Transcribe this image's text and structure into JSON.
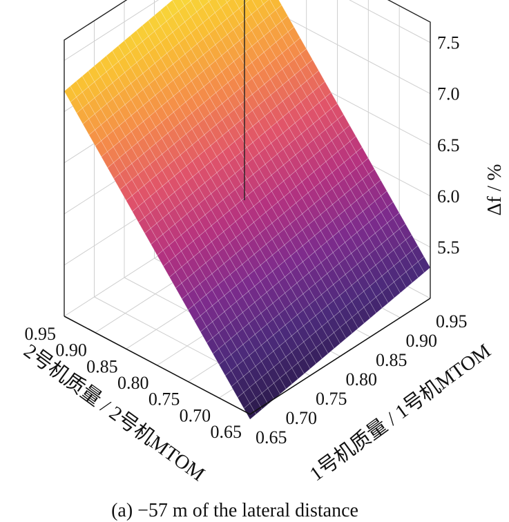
{
  "chart_data": {
    "type": "surface3d",
    "title": "",
    "caption": "(a) −57 m of the lateral distance",
    "x_axis": {
      "label": "1号机质量 / 1号机MTOM",
      "ticks": [
        "0.65",
        "0.70",
        "0.75",
        "0.80",
        "0.85",
        "0.90",
        "0.95"
      ],
      "range": [
        0.65,
        0.95
      ]
    },
    "y_axis": {
      "label": "2号机质量 / 2号机MTOM",
      "ticks": [
        "0.95",
        "0.90",
        "0.85",
        "0.80",
        "0.75",
        "0.70",
        "0.65"
      ],
      "range": [
        0.65,
        0.95
      ]
    },
    "z_axis": {
      "label": "Δf / %",
      "ticks": [
        "5.5",
        "6.0",
        "6.5",
        "7.0",
        "7.5"
      ],
      "range": [
        5.0,
        7.7
      ]
    },
    "surface_corners": {
      "x0.65_y0.65": 4.95,
      "x0.95_y0.65": 5.3,
      "x0.65_y0.95": 7.2,
      "x0.95_y0.95": 7.55
    },
    "colormap": [
      "#2a1a4a",
      "#4b2a7a",
      "#7d2b8c",
      "#b5327f",
      "#e0536a",
      "#f48a4a",
      "#f9c033",
      "#f7e53d"
    ],
    "grid": true
  }
}
